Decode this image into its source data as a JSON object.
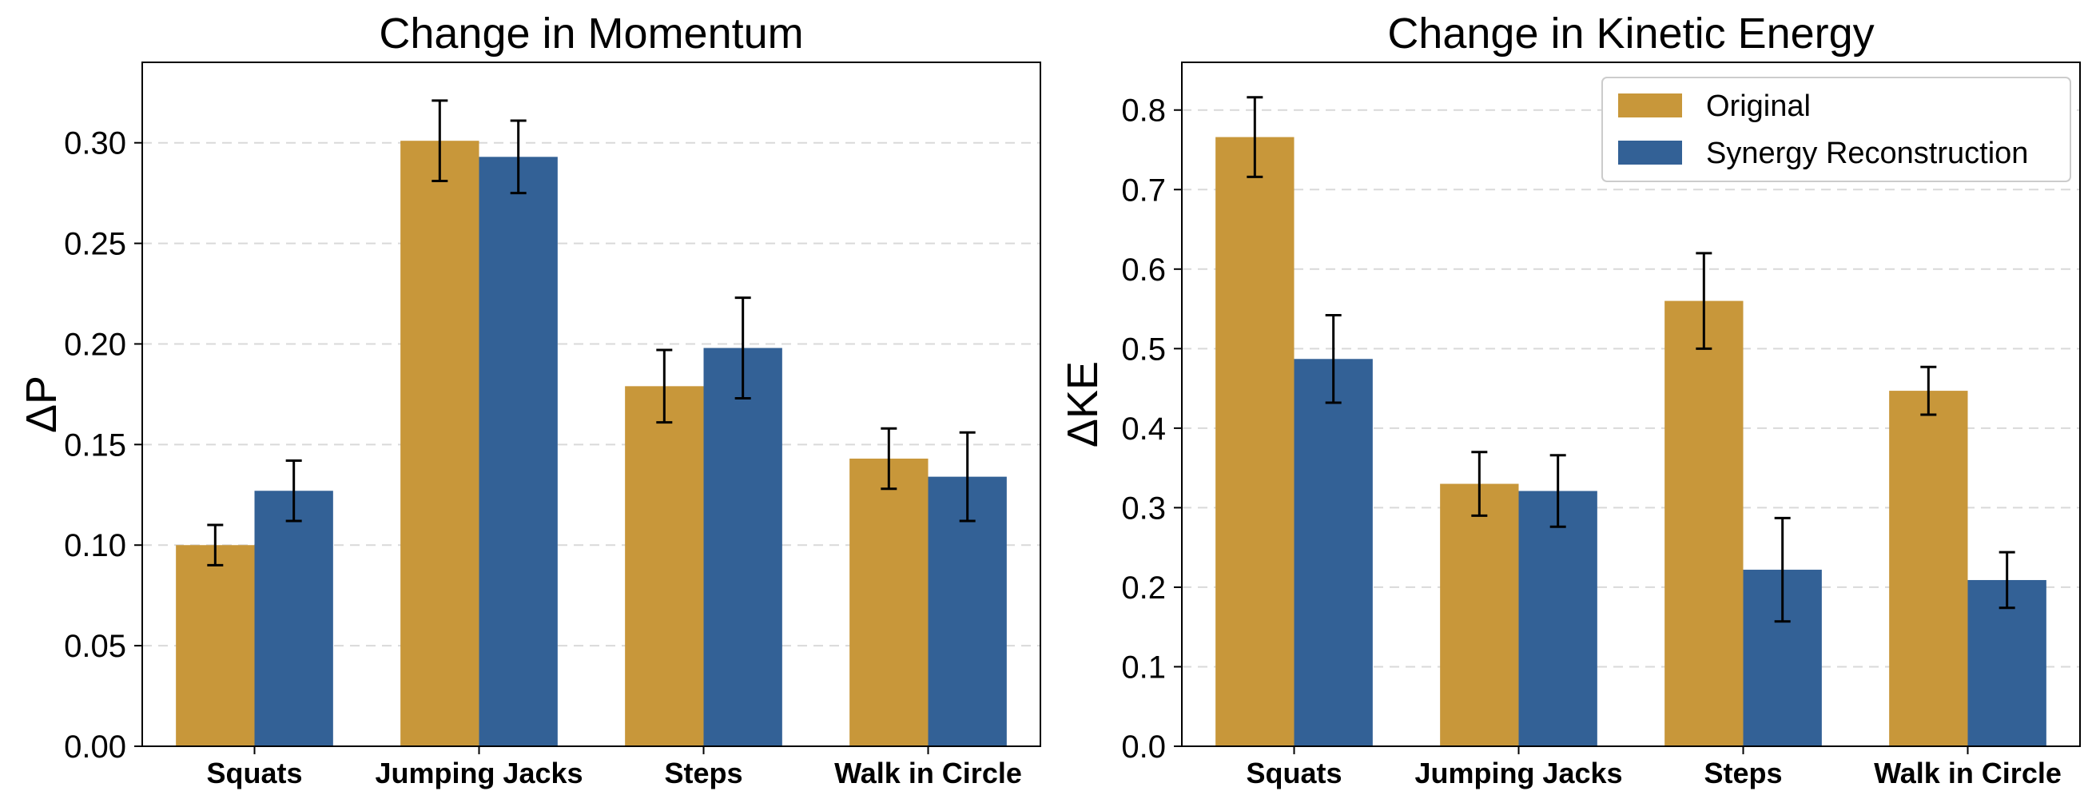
{
  "colors": {
    "original": "#c8973a",
    "synergy": "#336196",
    "error": "#000000",
    "grid": "#d9d9d9",
    "axis": "#000000"
  },
  "chart_data": [
    {
      "type": "bar",
      "title": "Change in Momentum",
      "xlabel": "",
      "ylabel": "ΔP",
      "categories": [
        "Squats",
        "Jumping Jacks",
        "Steps",
        "Walk in Circle"
      ],
      "ylim": [
        0,
        0.34
      ],
      "yticks": [
        0.0,
        0.05,
        0.1,
        0.15,
        0.2,
        0.25,
        0.3
      ],
      "ytick_labels": [
        "0.00",
        "0.05",
        "0.10",
        "0.15",
        "0.20",
        "0.25",
        "0.30"
      ],
      "grid": "y-dashed",
      "legend": false,
      "series": [
        {
          "name": "Original",
          "values": [
            0.1,
            0.301,
            0.179,
            0.143
          ],
          "errors": [
            0.01,
            0.02,
            0.018,
            0.015
          ]
        },
        {
          "name": "Synergy Reconstruction",
          "values": [
            0.127,
            0.293,
            0.198,
            0.134
          ],
          "errors": [
            0.015,
            0.018,
            0.025,
            0.022
          ]
        }
      ]
    },
    {
      "type": "bar",
      "title": "Change in Kinetic Energy",
      "xlabel": "",
      "ylabel": "ΔKE",
      "categories": [
        "Squats",
        "Jumping Jacks",
        "Steps",
        "Walk in Circle"
      ],
      "ylim": [
        0,
        0.86
      ],
      "yticks": [
        0.0,
        0.1,
        0.2,
        0.3,
        0.4,
        0.5,
        0.6,
        0.7,
        0.8
      ],
      "ytick_labels": [
        "0.0",
        "0.1",
        "0.2",
        "0.3",
        "0.4",
        "0.5",
        "0.6",
        "0.7",
        "0.8"
      ],
      "grid": "y-dashed",
      "legend": "upper-right",
      "series": [
        {
          "name": "Original",
          "values": [
            0.766,
            0.33,
            0.56,
            0.447
          ],
          "errors": [
            0.05,
            0.04,
            0.06,
            0.03
          ]
        },
        {
          "name": "Synergy Reconstruction",
          "values": [
            0.487,
            0.321,
            0.222,
            0.209
          ],
          "errors": [
            0.055,
            0.045,
            0.065,
            0.035
          ]
        }
      ]
    }
  ]
}
